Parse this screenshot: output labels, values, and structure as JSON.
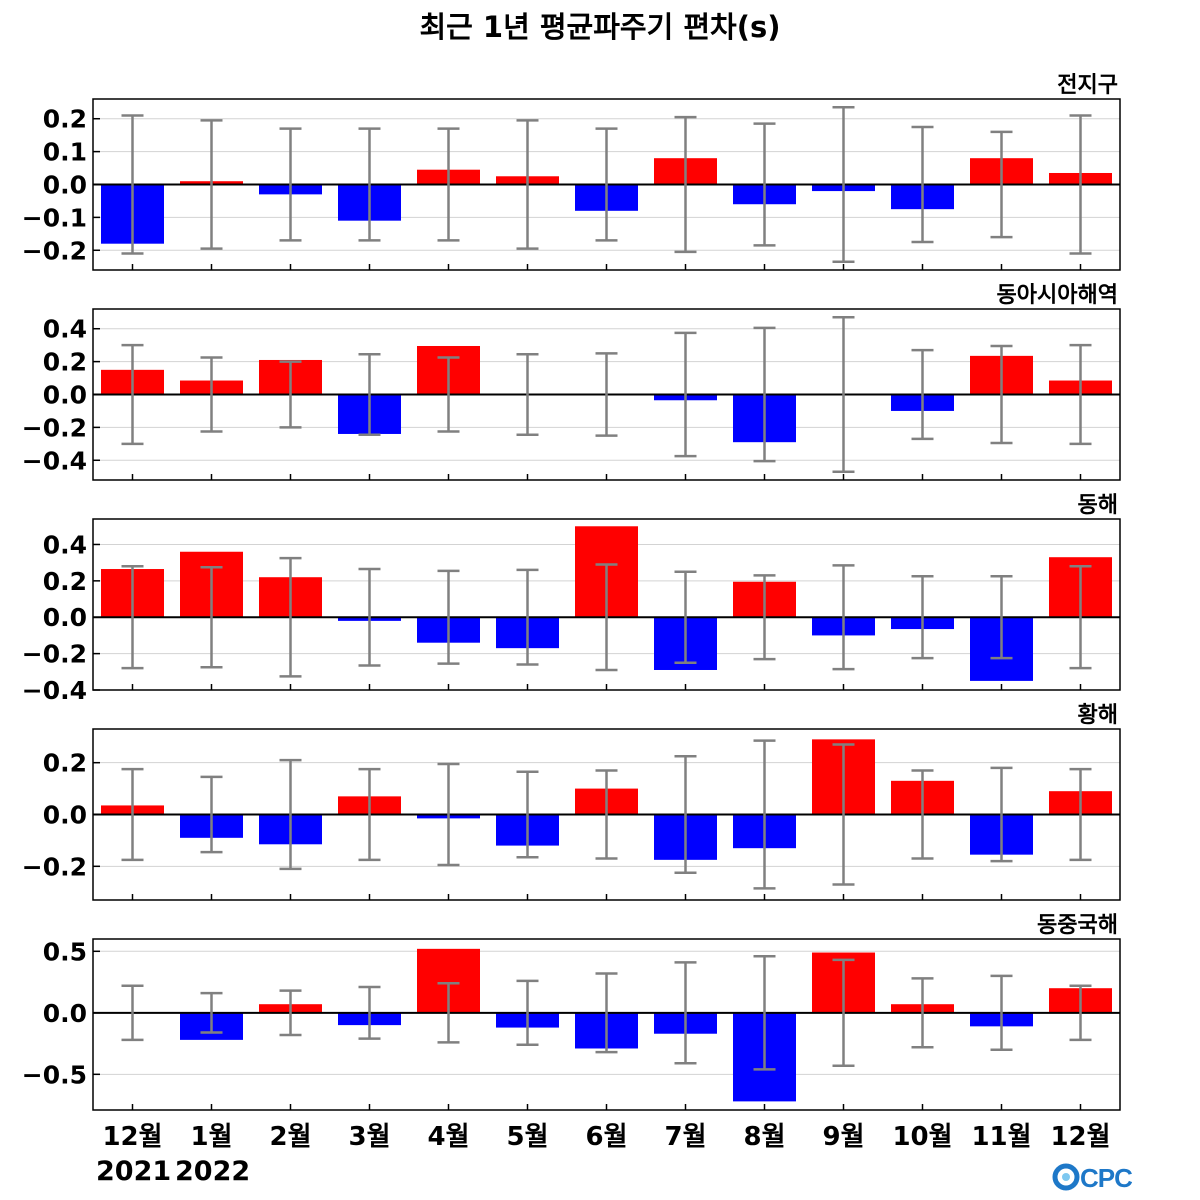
{
  "title": "최근 1년 평균파주기 편차(s)",
  "years": [
    "2021",
    "2022"
  ],
  "logo_text": "OCPC",
  "colors": {
    "positive": "#ff0000",
    "negative": "#0000ff",
    "errorbar": "#808080",
    "grid": "#d3d3d3"
  },
  "chart_data": [
    {
      "type": "bar",
      "subtitle": "전지구",
      "categories": [
        "12월",
        "1월",
        "2월",
        "3월",
        "4월",
        "5월",
        "6월",
        "7월",
        "8월",
        "9월",
        "10월",
        "11월",
        "12월"
      ],
      "values": [
        -0.18,
        0.01,
        -0.03,
        -0.11,
        0.045,
        0.025,
        -0.08,
        0.08,
        -0.06,
        -0.02,
        -0.075,
        0.08,
        0.035
      ],
      "error": [
        0.21,
        0.195,
        0.17,
        0.17,
        0.17,
        0.195,
        0.17,
        0.205,
        0.185,
        0.235,
        0.175,
        0.16,
        0.21
      ],
      "ylim": [
        -0.26,
        0.26
      ],
      "yticks": [
        -0.2,
        -0.1,
        0.0,
        0.1,
        0.2
      ],
      "yticklabels": [
        "−0.2",
        "−0.1",
        "0.0",
        "0.1",
        "0.2"
      ],
      "grid": true
    },
    {
      "type": "bar",
      "subtitle": "동아시아해역",
      "categories": [
        "12월",
        "1월",
        "2월",
        "3월",
        "4월",
        "5월",
        "6월",
        "7월",
        "8월",
        "9월",
        "10월",
        "11월",
        "12월"
      ],
      "values": [
        0.15,
        0.085,
        0.21,
        -0.24,
        0.295,
        0.0,
        0.0,
        -0.035,
        -0.29,
        0.0,
        -0.1,
        0.235,
        0.085
      ],
      "error": [
        0.3,
        0.225,
        0.2,
        0.245,
        0.225,
        0.245,
        0.25,
        0.375,
        0.405,
        0.47,
        0.27,
        0.295,
        0.3
      ],
      "ylim": [
        -0.52,
        0.52
      ],
      "yticks": [
        -0.4,
        -0.2,
        0.0,
        0.2,
        0.4
      ],
      "yticklabels": [
        "−0.4",
        "−0.2",
        "0.0",
        "0.2",
        "0.4"
      ],
      "grid": true
    },
    {
      "type": "bar",
      "subtitle": "동해",
      "categories": [
        "12월",
        "1월",
        "2월",
        "3월",
        "4월",
        "5월",
        "6월",
        "7월",
        "8월",
        "9월",
        "10월",
        "11월",
        "12월"
      ],
      "values": [
        0.265,
        0.36,
        0.22,
        -0.02,
        -0.14,
        -0.17,
        0.5,
        -0.29,
        0.195,
        -0.1,
        -0.065,
        -0.35,
        0.33
      ],
      "error": [
        0.28,
        0.275,
        0.325,
        0.265,
        0.255,
        0.26,
        0.29,
        0.25,
        0.23,
        0.285,
        0.225,
        0.225,
        0.28
      ],
      "ylim": [
        -0.4,
        0.54
      ],
      "yticks": [
        -0.4,
        -0.2,
        0.0,
        0.2,
        0.4
      ],
      "yticklabels": [
        "−0.4",
        "−0.2",
        "0.0",
        "0.2",
        "0.4"
      ],
      "grid": true
    },
    {
      "type": "bar",
      "subtitle": "황해",
      "categories": [
        "12월",
        "1월",
        "2월",
        "3월",
        "4월",
        "5월",
        "6월",
        "7월",
        "8월",
        "9월",
        "10월",
        "11월",
        "12월"
      ],
      "values": [
        0.035,
        -0.09,
        -0.115,
        0.07,
        -0.015,
        -0.12,
        0.1,
        -0.175,
        -0.13,
        0.29,
        0.13,
        -0.155,
        0.09
      ],
      "error": [
        0.175,
        0.145,
        0.21,
        0.175,
        0.195,
        0.165,
        0.17,
        0.225,
        0.285,
        0.27,
        0.17,
        0.18,
        0.175
      ],
      "ylim": [
        -0.33,
        0.33
      ],
      "yticks": [
        -0.2,
        0.0,
        0.2
      ],
      "yticklabels": [
        "−0.2",
        "0.0",
        "0.2"
      ],
      "grid": true
    },
    {
      "type": "bar",
      "subtitle": "동중국해",
      "categories": [
        "12월",
        "1월",
        "2월",
        "3월",
        "4월",
        "5월",
        "6월",
        "7월",
        "8월",
        "9월",
        "10월",
        "11월",
        "12월"
      ],
      "values": [
        0.0,
        -0.22,
        0.07,
        -0.1,
        0.52,
        -0.12,
        -0.29,
        -0.17,
        -0.72,
        0.49,
        0.07,
        -0.11,
        0.2
      ],
      "error": [
        0.22,
        0.16,
        0.18,
        0.21,
        0.24,
        0.26,
        0.32,
        0.41,
        0.46,
        0.43,
        0.28,
        0.3,
        0.22
      ],
      "ylim": [
        -0.79,
        0.6
      ],
      "yticks": [
        -0.5,
        0.0,
        0.5
      ],
      "yticklabels": [
        "−0.5",
        "0.0",
        "0.5"
      ],
      "grid": true
    }
  ]
}
